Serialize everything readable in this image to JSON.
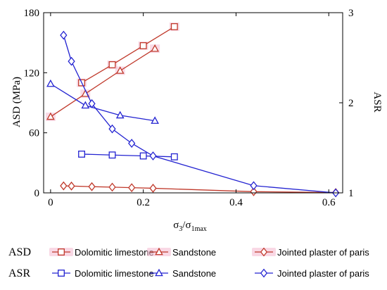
{
  "chart_data": {
    "type": "line",
    "xlabel": "σ3/σ1max",
    "xlabel_main": "σ",
    "xlabel_sub1": "3",
    "xlabel_mid": "/σ",
    "xlabel_sub2": "1max",
    "ylabel_left": "ASD (MPa)",
    "ylabel_right": "ASR",
    "xlim": [
      -0.015,
      0.63
    ],
    "ylim_left": [
      0,
      180
    ],
    "ylim_right": [
      1,
      3
    ],
    "xticks": [
      0,
      0.2,
      0.4,
      0.6
    ],
    "xtick_labels": [
      "0",
      "0.2",
      "0.4",
      "0.6"
    ],
    "yticks_left": [
      0,
      60,
      120,
      180
    ],
    "ytick_labels_left": [
      "0",
      "60",
      "120",
      "180"
    ],
    "yticks_right": [
      1,
      2,
      3
    ],
    "ytick_labels_right": [
      "1",
      "2",
      "3"
    ],
    "grid": false,
    "colors": {
      "asd": "#c0392b",
      "asr": "#2323d1",
      "highlight": "#f4b8d0"
    },
    "legend": {
      "placement": "bottom",
      "groups": [
        {
          "label": "ASD",
          "entries": [
            "Dolomitic limestone",
            "Sandstone",
            "Jointed plaster of paris"
          ]
        },
        {
          "label": "ASR",
          "entries": [
            "Dolomitic limestone",
            "Sandstone",
            "Jointed plaster of paris"
          ]
        }
      ]
    },
    "series": [
      {
        "name": "Dolomitic limestone",
        "group": "ASD",
        "axis": "left",
        "marker": "square",
        "color": "#c0392b",
        "x": [
          0.067,
          0.133,
          0.2,
          0.267
        ],
        "y": [
          110,
          128,
          147,
          166
        ]
      },
      {
        "name": "Sandstone",
        "group": "ASD",
        "axis": "left",
        "marker": "triangle",
        "color": "#c0392b",
        "x": [
          0,
          0.075,
          0.15,
          0.225
        ],
        "y": [
          76,
          99,
          122,
          144
        ]
      },
      {
        "name": "Jointed plaster of paris",
        "group": "ASD",
        "axis": "left",
        "marker": "diamond",
        "color": "#c0392b",
        "x": [
          0.028,
          0.045,
          0.089,
          0.133,
          0.175,
          0.221,
          0.438,
          0.615
        ],
        "y": [
          7,
          6.8,
          6.2,
          5.7,
          5.2,
          4.6,
          1.2,
          0.3
        ]
      },
      {
        "name": "Dolomitic limestone",
        "group": "ASR",
        "axis": "right",
        "marker": "square",
        "color": "#2323d1",
        "x": [
          0.067,
          0.133,
          0.2,
          0.267
        ],
        "y": [
          1.43,
          1.42,
          1.41,
          1.4
        ]
      },
      {
        "name": "Sandstone",
        "group": "ASR",
        "axis": "right",
        "marker": "triangle",
        "color": "#2323d1",
        "x": [
          0,
          0.075,
          0.15,
          0.225
        ],
        "y": [
          2.21,
          1.97,
          1.86,
          1.8
        ]
      },
      {
        "name": "Jointed plaster of paris",
        "group": "ASR",
        "axis": "right",
        "marker": "diamond",
        "color": "#2323d1",
        "x": [
          0.028,
          0.045,
          0.089,
          0.133,
          0.175,
          0.221,
          0.438,
          0.615
        ],
        "y": [
          2.75,
          2.46,
          1.99,
          1.71,
          1.55,
          1.41,
          1.08,
          1.0
        ]
      }
    ]
  }
}
